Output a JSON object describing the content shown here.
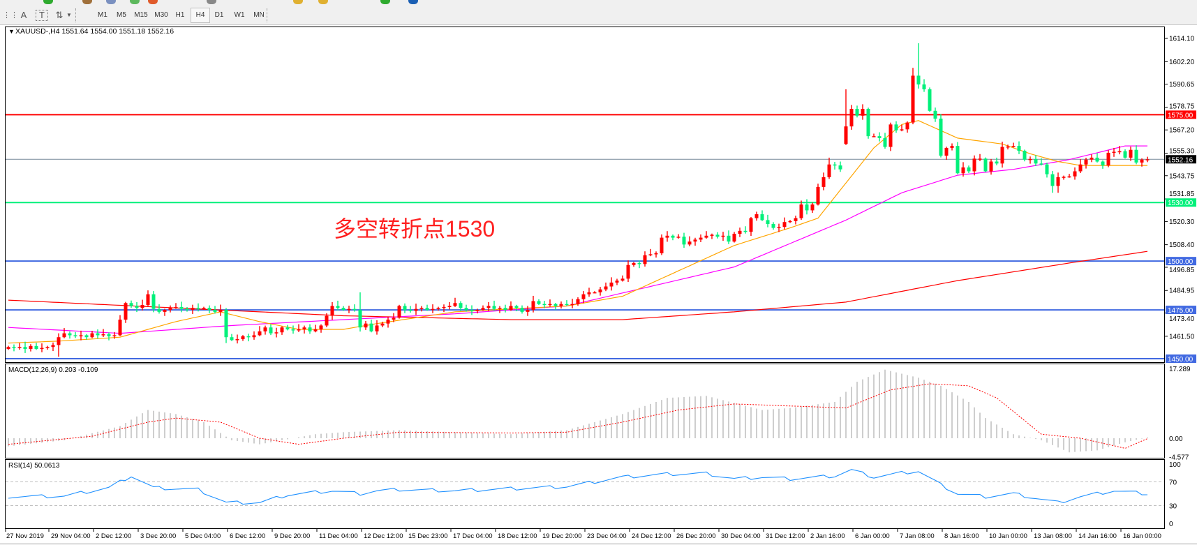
{
  "toolbar": {
    "icons": [
      "grid-icon",
      "text-icon",
      "text-label-icon",
      "arrows-icon"
    ],
    "timeframes": [
      "M1",
      "M5",
      "M15",
      "M30",
      "H1",
      "H4",
      "D1",
      "W1",
      "MN"
    ],
    "active_timeframe": "H4"
  },
  "chart": {
    "header": "XAUUSD-,H4  1551.64 1554.00 1551.18 1552.16",
    "annotation": "多空转折点1530",
    "colors": {
      "bull": "#ff0000",
      "bear": "#00f07a",
      "ma_fast": "#ffa500",
      "ma_mid": "#ff00ff",
      "ma_slow": "#ff0000",
      "bid_line": "#778899"
    },
    "hlines": [
      {
        "price": 1575.0,
        "label": "1575.00",
        "color": "#ff0000"
      },
      {
        "price": 1530.0,
        "label": "1530.00",
        "color": "#00f07a"
      },
      {
        "price": 1500.0,
        "label": "1500.00",
        "color": "#4169e1"
      },
      {
        "price": 1475.0,
        "label": "1475.00",
        "color": "#4169e1"
      },
      {
        "price": 1450.0,
        "label": "1450.00",
        "color": "#4169e1"
      }
    ],
    "bid": {
      "price": 1552.16,
      "label": "1552.16"
    },
    "price_ticks": [
      "1614.10",
      "1602.20",
      "1590.65",
      "1578.75",
      "1567.20",
      "1555.30",
      "1543.75",
      "1531.85",
      "1520.30",
      "1508.40",
      "1496.85",
      "1484.95",
      "1473.40",
      "1461.50"
    ],
    "time_labels": [
      "27 Nov 2019",
      "29 Nov 04:00",
      "2 Dec 12:00",
      "3 Dec 20:00",
      "5 Dec 04:00",
      "6 Dec 12:00",
      "9 Dec 20:00",
      "11 Dec 04:00",
      "12 Dec 12:00",
      "15 Dec 23:00",
      "17 Dec 04:00",
      "18 Dec 12:00",
      "19 Dec 20:00",
      "23 Dec 04:00",
      "24 Dec 12:00",
      "26 Dec 20:00",
      "30 Dec 04:00",
      "31 Dec 12:00",
      "2 Jan 16:00",
      "6 Jan 00:00",
      "7 Jan 08:00",
      "8 Jan 16:00",
      "10 Jan 00:00",
      "13 Jan 08:00",
      "14 Jan 16:00",
      "16 Jan 00:00"
    ]
  },
  "chart_data": {
    "type": "candlestick",
    "symbol": "XAUUSD-",
    "timeframe": "H4",
    "ylim": [
      1450,
      1619.5
    ],
    "close": [
      1456,
      1455.5,
      1456,
      1455,
      1456.5,
      1455,
      1455.5,
      1456,
      1457,
      1461,
      1463,
      1462,
      1461.5,
      1462,
      1461,
      1463,
      1462,
      1462.5,
      1461.5,
      1462,
      1470,
      1478.5,
      1477,
      1476,
      1477.5,
      1483,
      1475.5,
      1474,
      1475,
      1476,
      1476.5,
      1475.5,
      1475,
      1476,
      1475.5,
      1476,
      1475,
      1474,
      1475,
      1461,
      1459.5,
      1460,
      1461.5,
      1461,
      1462,
      1464,
      1466,
      1463,
      1463.5,
      1466,
      1465,
      1464.5,
      1465,
      1466,
      1464,
      1465,
      1467,
      1472,
      1477,
      1476,
      1475,
      1475.5,
      1475,
      1466,
      1468,
      1464,
      1467,
      1468,
      1470,
      1471,
      1477,
      1475,
      1474.5,
      1475.5,
      1476,
      1475,
      1475.5,
      1476,
      1476.5,
      1477,
      1478.5,
      1476,
      1475,
      1474.5,
      1475,
      1476,
      1477,
      1475.5,
      1476,
      1475,
      1477,
      1476,
      1474,
      1475,
      1479.5,
      1478,
      1477.5,
      1478,
      1477,
      1478,
      1477.5,
      1478,
      1480.5,
      1483,
      1484,
      1484,
      1485.5,
      1487,
      1489,
      1490,
      1491,
      1498,
      1499,
      1498.5,
      1503,
      1503.5,
      1504,
      1512,
      1513,
      1512,
      1512.5,
      1508.5,
      1510,
      1511,
      1512,
      1513,
      1513.5,
      1512.5,
      1513,
      1510,
      1514,
      1515.5,
      1515,
      1522,
      1524,
      1521,
      1519,
      1517,
      1517.5,
      1520,
      1520.5,
      1522,
      1529,
      1526,
      1529,
      1538,
      1543,
      1549.5,
      1549,
      1547,
      1569,
      1578,
      1574.5,
      1578,
      1564,
      1564,
      1563,
      1558.5,
      1570,
      1567,
      1567.5,
      1571,
      1595,
      1590.5,
      1588,
      1577,
      1573,
      1554,
      1558,
      1559,
      1545,
      1548,
      1546,
      1552.5,
      1552.5,
      1546,
      1551,
      1550,
      1558.5,
      1558.7,
      1559,
      1556.5,
      1552,
      1552.3,
      1550,
      1549.5,
      1544.5,
      1538.5,
      1543,
      1543.2,
      1543.4,
      1546,
      1549.5,
      1552,
      1553,
      1551,
      1549,
      1555.5,
      1556,
      1556.3,
      1553,
      1557,
      1550.5,
      1552,
      1552.16
    ],
    "open_overrides": {
      "0": 1455,
      "150": 1560
    },
    "high_overrides": {
      "25": 1485,
      "58": 1479,
      "63": 1484,
      "147": 1553,
      "150": 1588,
      "151": 1580,
      "162": 1599,
      "163": 1611.6
    },
    "low_overrides": {
      "9": 1451,
      "39": 1458,
      "187": 1535,
      "188": 1535
    },
    "ma_fast": [
      [
        0,
        1458
      ],
      [
        9,
        1459
      ],
      [
        20,
        1461
      ],
      [
        30,
        1469
      ],
      [
        38,
        1474
      ],
      [
        45,
        1469
      ],
      [
        52,
        1465
      ],
      [
        60,
        1465
      ],
      [
        66,
        1468
      ],
      [
        80,
        1474
      ],
      [
        100,
        1477
      ],
      [
        110,
        1482
      ],
      [
        120,
        1495
      ],
      [
        130,
        1508
      ],
      [
        140,
        1517
      ],
      [
        145,
        1522
      ],
      [
        150,
        1540
      ],
      [
        155,
        1558
      ],
      [
        160,
        1570
      ],
      [
        163,
        1572
      ],
      [
        170,
        1563
      ],
      [
        178,
        1560
      ],
      [
        183,
        1555
      ],
      [
        188,
        1551
      ],
      [
        192,
        1549
      ],
      [
        204,
        1549
      ]
    ],
    "ma_mid": [
      [
        0,
        1466
      ],
      [
        20,
        1463
      ],
      [
        40,
        1467
      ],
      [
        60,
        1470
      ],
      [
        80,
        1473
      ],
      [
        100,
        1477
      ],
      [
        130,
        1497
      ],
      [
        150,
        1521
      ],
      [
        160,
        1535
      ],
      [
        170,
        1544
      ],
      [
        180,
        1547
      ],
      [
        190,
        1552
      ],
      [
        200,
        1559
      ],
      [
        204,
        1559
      ]
    ],
    "ma_slow": [
      [
        0,
        1480
      ],
      [
        30,
        1476
      ],
      [
        60,
        1472
      ],
      [
        90,
        1470
      ],
      [
        110,
        1470
      ],
      [
        130,
        1474
      ],
      [
        150,
        1479
      ],
      [
        170,
        1490
      ],
      [
        190,
        1499
      ],
      [
        204,
        1505
      ]
    ],
    "macd": {
      "label": "MACD(12,26,9) 0.203 -0.109",
      "ticks": [
        "17.289",
        "0.00",
        "-4.577"
      ],
      "ylim": [
        -4.577,
        17.289
      ],
      "main": [
        [
          0,
          -2
        ],
        [
          10,
          -0.5
        ],
        [
          20,
          3
        ],
        [
          25,
          7
        ],
        [
          30,
          6
        ],
        [
          35,
          4
        ],
        [
          40,
          -0.5
        ],
        [
          45,
          -1.5
        ],
        [
          55,
          1
        ],
        [
          60,
          1.5
        ],
        [
          70,
          2
        ],
        [
          90,
          1
        ],
        [
          100,
          2
        ],
        [
          110,
          6
        ],
        [
          118,
          10
        ],
        [
          125,
          10.5
        ],
        [
          135,
          7
        ],
        [
          140,
          7.5
        ],
        [
          148,
          9
        ],
        [
          152,
          14
        ],
        [
          157,
          17
        ],
        [
          163,
          15
        ],
        [
          167,
          13
        ],
        [
          172,
          9
        ],
        [
          175,
          5
        ],
        [
          180,
          1
        ],
        [
          185,
          -0.5
        ],
        [
          190,
          -3.5
        ],
        [
          195,
          -3
        ],
        [
          200,
          -1
        ],
        [
          204,
          0.2
        ]
      ],
      "signal": [
        [
          0,
          -1.5
        ],
        [
          15,
          0.5
        ],
        [
          25,
          4
        ],
        [
          30,
          5
        ],
        [
          38,
          4
        ],
        [
          45,
          0
        ],
        [
          52,
          -1.5
        ],
        [
          60,
          0
        ],
        [
          70,
          1.5
        ],
        [
          90,
          1.3
        ],
        [
          100,
          1.5
        ],
        [
          110,
          4
        ],
        [
          120,
          7
        ],
        [
          130,
          8.5
        ],
        [
          140,
          8
        ],
        [
          150,
          7.5
        ],
        [
          158,
          12
        ],
        [
          165,
          13.5
        ],
        [
          172,
          13
        ],
        [
          177,
          10
        ],
        [
          185,
          1
        ],
        [
          192,
          0
        ],
        [
          200,
          -2.5
        ],
        [
          204,
          -0.1
        ]
      ]
    },
    "rsi": {
      "label": "RSI(14) 50.0613",
      "ticks": [
        "100",
        "70",
        "30",
        "0"
      ],
      "levels": [
        70,
        30
      ],
      "values": [
        [
          0,
          45
        ],
        [
          10,
          46
        ],
        [
          18,
          60
        ],
        [
          22,
          80
        ],
        [
          26,
          60
        ],
        [
          34,
          57
        ],
        [
          39,
          35
        ],
        [
          45,
          35
        ],
        [
          50,
          48
        ],
        [
          58,
          55
        ],
        [
          63,
          50
        ],
        [
          66,
          55
        ],
        [
          70,
          57
        ],
        [
          80,
          55
        ],
        [
          100,
          62
        ],
        [
          110,
          78
        ],
        [
          118,
          83
        ],
        [
          125,
          84
        ],
        [
          130,
          75
        ],
        [
          135,
          78
        ],
        [
          140,
          75
        ],
        [
          148,
          80
        ],
        [
          151,
          90
        ],
        [
          155,
          78
        ],
        [
          160,
          85
        ],
        [
          163,
          88
        ],
        [
          167,
          65
        ],
        [
          170,
          50
        ],
        [
          175,
          45
        ],
        [
          180,
          50
        ],
        [
          188,
          35
        ],
        [
          192,
          45
        ],
        [
          198,
          55
        ],
        [
          204,
          50
        ]
      ]
    }
  }
}
